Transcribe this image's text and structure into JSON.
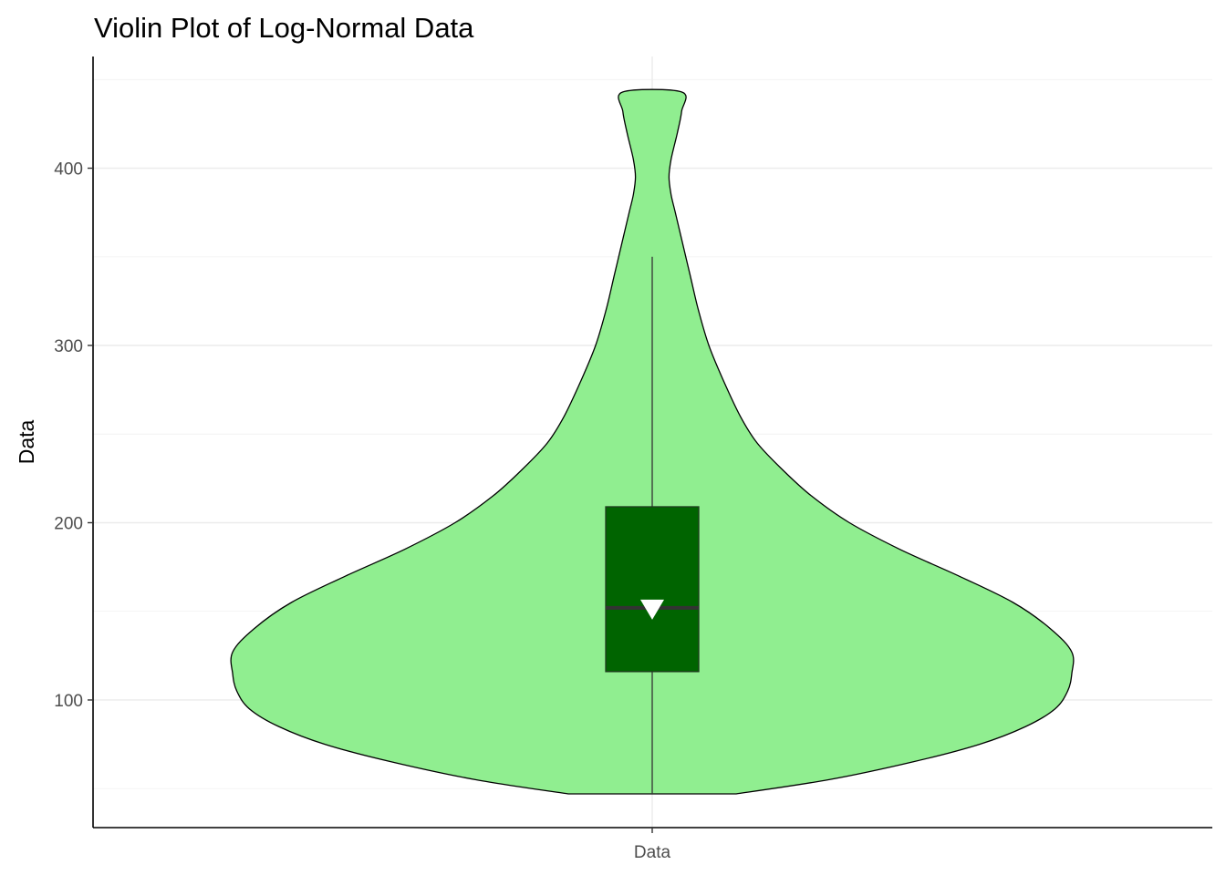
{
  "chart_data": {
    "type": "violin",
    "title": "Violin Plot of Log-Normal Data",
    "xlabel": "",
    "ylabel": "Data",
    "categories": [
      "Data"
    ],
    "ylim": [
      28,
      463
    ],
    "y_ticks": [
      100,
      200,
      300,
      400
    ],
    "y_tick_labels": [
      "100",
      "200",
      "300",
      "400"
    ],
    "grid": true,
    "legend": "none",
    "violin": {
      "fill": "#90EE90",
      "outline": "#000000",
      "min": 47,
      "max": 443,
      "max_density_at": 127,
      "profile": [
        [
          47,
          0.2
        ],
        [
          55,
          0.42
        ],
        [
          65,
          0.62
        ],
        [
          75,
          0.78
        ],
        [
          85,
          0.89
        ],
        [
          95,
          0.96
        ],
        [
          105,
          0.99
        ],
        [
          115,
          1.0
        ],
        [
          127,
          1.0
        ],
        [
          140,
          0.95
        ],
        [
          155,
          0.86
        ],
        [
          170,
          0.73
        ],
        [
          185,
          0.59
        ],
        [
          200,
          0.47
        ],
        [
          215,
          0.38
        ],
        [
          230,
          0.31
        ],
        [
          245,
          0.25
        ],
        [
          260,
          0.21
        ],
        [
          280,
          0.17
        ],
        [
          300,
          0.135
        ],
        [
          320,
          0.11
        ],
        [
          340,
          0.09
        ],
        [
          360,
          0.07
        ],
        [
          375,
          0.055
        ],
        [
          385,
          0.045
        ],
        [
          395,
          0.04
        ],
        [
          405,
          0.045
        ],
        [
          420,
          0.06
        ],
        [
          432,
          0.07
        ],
        [
          443,
          0.07
        ]
      ]
    },
    "boxplot": {
      "fill": "#006400",
      "outline": "#1e3a1e",
      "whisker_low": 47,
      "q1": 116,
      "median": 152,
      "q3": 209,
      "whisker_high": 350
    },
    "mean": {
      "value": 152,
      "marker": "triangle-down",
      "color": "#ffffff"
    }
  }
}
